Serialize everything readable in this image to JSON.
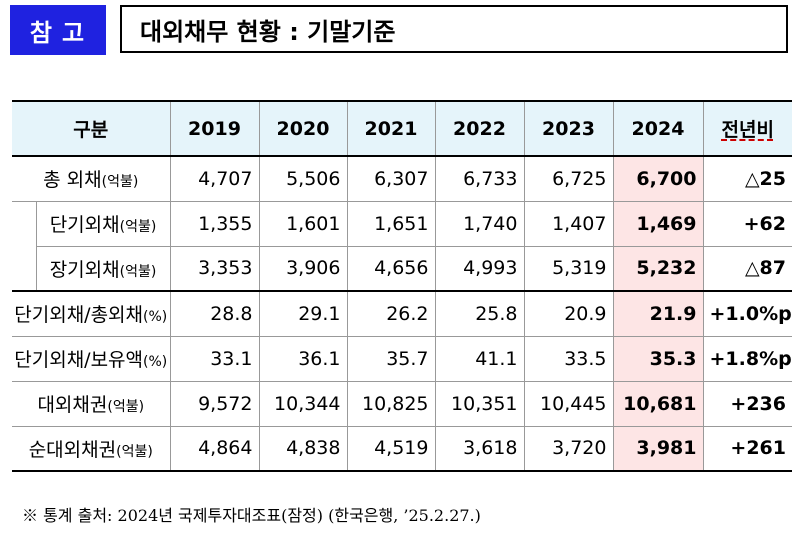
{
  "header": {
    "badge": "참고",
    "title": "대외채무 현황 : 기말기준"
  },
  "table": {
    "columns": [
      "구분",
      "2019",
      "2020",
      "2021",
      "2022",
      "2023",
      "2024",
      "전년비"
    ],
    "rows": [
      {
        "label": "총 외채",
        "unit": "(억불)",
        "values": [
          "4,707",
          "5,506",
          "6,307",
          "6,733",
          "6,725"
        ],
        "y2024": "6,700",
        "yoy": "△25"
      },
      {
        "label": "단기외채",
        "unit": "(억불)",
        "values": [
          "1,355",
          "1,601",
          "1,651",
          "1,740",
          "1,407"
        ],
        "y2024": "1,469",
        "yoy": "+62"
      },
      {
        "label": "장기외채",
        "unit": "(억불)",
        "values": [
          "3,353",
          "3,906",
          "4,656",
          "4,993",
          "5,319"
        ],
        "y2024": "5,232",
        "yoy": "△87"
      },
      {
        "label": "단기외채/총외채",
        "unit": "(%)",
        "values": [
          "28.8",
          "29.1",
          "26.2",
          "25.8",
          "20.9"
        ],
        "y2024": "21.9",
        "yoy": "+1.0%p"
      },
      {
        "label": "단기외채/보유액",
        "unit": "(%)",
        "values": [
          "33.1",
          "36.1",
          "35.7",
          "41.1",
          "33.5"
        ],
        "y2024": "35.3",
        "yoy": "+1.8%p"
      },
      {
        "label": "대외채권",
        "unit": "(억불)",
        "values": [
          "9,572",
          "10,344",
          "10,825",
          "10,351",
          "10,445"
        ],
        "y2024": "10,681",
        "yoy": "+236"
      },
      {
        "label": "순대외채권",
        "unit": "(억불)",
        "values": [
          "4,864",
          "4,838",
          "4,519",
          "3,618",
          "3,720"
        ],
        "y2024": "3,981",
        "yoy": "+261"
      }
    ]
  },
  "note": "※ 통계 출처: 2024년 국제투자대조표(잠정) (한국은행, ’25.2.27.)"
}
